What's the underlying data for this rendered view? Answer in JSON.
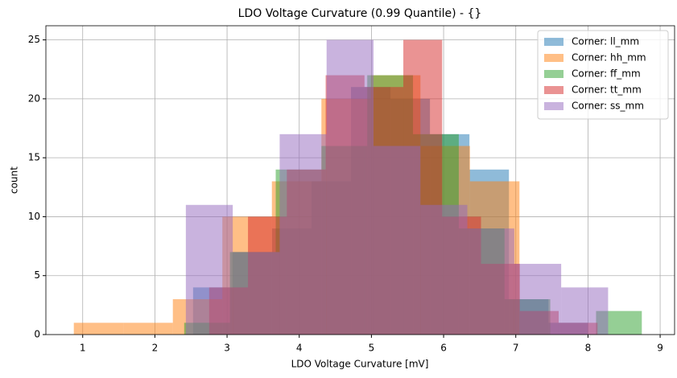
{
  "chart_data": {
    "type": "histogram",
    "title": "LDO Voltage Curvature (0.99 Quantile) - {}",
    "x_label": "LDO Voltage Curvature [mV]",
    "y_label": "count",
    "xlim": [
      0.49,
      9.2
    ],
    "ylim": [
      0,
      26.2
    ],
    "xticks": [
      1,
      2,
      3,
      4,
      5,
      6,
      7,
      8,
      9
    ],
    "yticks": [
      0,
      5,
      10,
      15,
      20,
      25
    ],
    "grid": true,
    "legend": "upper-right",
    "opacity": 0.5,
    "series": [
      {
        "name": "Corner: ll_mm",
        "color": "#1f77b4",
        "bins": [
          2.529,
          3.076,
          3.623,
          4.17,
          4.717,
          5.264,
          5.811,
          6.358,
          6.905,
          7.452,
          7.999
        ],
        "values": [
          4,
          7,
          9,
          13,
          21,
          20,
          17,
          14,
          3,
          1
        ]
      },
      {
        "name": "Corner: hh_mm",
        "color": "#ff7f0e",
        "bins": [
          0.877,
          1.563,
          2.249,
          2.935,
          3.621,
          4.307,
          4.993,
          5.679,
          6.365,
          7.051
        ],
        "values": [
          1,
          1,
          3,
          10,
          13,
          20,
          22,
          16,
          13
        ]
      },
      {
        "name": "Corner: ff_mm",
        "color": "#2ca02c",
        "bins": [
          2.406,
          3.04,
          3.674,
          4.308,
          4.942,
          5.576,
          6.21,
          6.844,
          7.478,
          8.112,
          8.746
        ],
        "values": [
          1,
          7,
          14,
          16,
          22,
          17,
          9,
          3,
          0,
          2
        ]
      },
      {
        "name": "Corner: tt_mm",
        "color": "#d62728",
        "bins": [
          2.752,
          3.29,
          3.828,
          4.366,
          4.904,
          5.442,
          5.98,
          6.518,
          7.056,
          7.594,
          8.132
        ],
        "values": [
          4,
          10,
          14,
          22,
          21,
          25,
          10,
          6,
          2,
          1
        ]
      },
      {
        "name": "Corner: ss_mm",
        "color": "#9467bd",
        "bins": [
          2.429,
          3.079,
          3.729,
          4.379,
          5.029,
          5.679,
          6.329,
          6.979,
          7.629,
          8.279
        ],
        "values": [
          11,
          7,
          17,
          25,
          16,
          11,
          9,
          6,
          4
        ]
      }
    ]
  }
}
